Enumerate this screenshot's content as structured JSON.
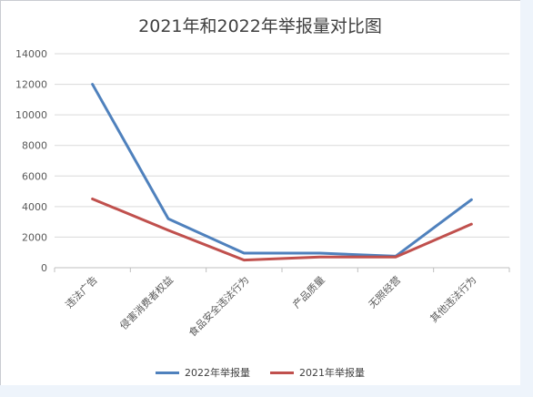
{
  "chart_data": {
    "type": "line",
    "title": "2021年和2022年举报量对比图",
    "categories": [
      "违法广告",
      "侵害消费者权益",
      "食品安全违法行为",
      "产品质量",
      "无照经营",
      "其他违法行为"
    ],
    "series": [
      {
        "name": "2022年举报量",
        "color": "#4f81bd",
        "values": [
          12000,
          3200,
          950,
          950,
          750,
          4450
        ]
      },
      {
        "name": "2021年举报量",
        "color": "#c0504d",
        "values": [
          4500,
          2450,
          500,
          700,
          700,
          2850
        ]
      }
    ],
    "ylim": [
      0,
      14000
    ],
    "yticks": [
      0,
      2000,
      4000,
      6000,
      8000,
      10000,
      12000,
      14000
    ],
    "grid": true,
    "legend_position": "bottom"
  }
}
